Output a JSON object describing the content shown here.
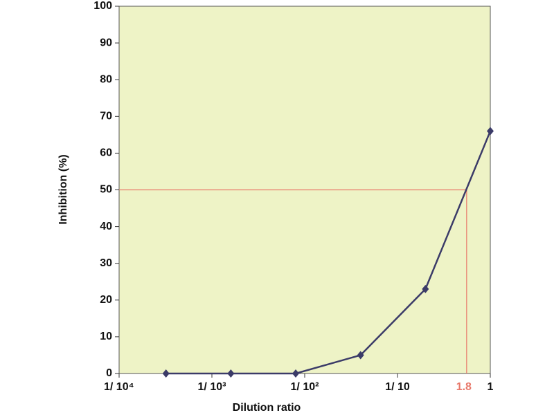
{
  "chart_data": {
    "type": "line",
    "x_label": "Dilution ratio",
    "y_label": "Inhibition (%)",
    "x": [
      0.00032,
      0.0016,
      0.008,
      0.04,
      0.2,
      1
    ],
    "series": [
      {
        "color": "#3b3b68",
        "values": [
          0,
          0,
          0,
          5,
          23,
          66
        ]
      }
    ],
    "xscale": "log",
    "xlim": [
      0.0001,
      1
    ],
    "ylim": [
      0,
      100
    ],
    "xticks": [
      {
        "value": 0.0001,
        "label": "1/ 10⁴"
      },
      {
        "value": 0.001,
        "label": "1/ 10³"
      },
      {
        "value": 0.01,
        "label": "1/ 10²"
      },
      {
        "value": 0.1,
        "label": "1/ 10"
      },
      1
    ],
    "yticks": [
      0,
      10,
      20,
      30,
      40,
      50,
      60,
      70,
      80,
      90,
      100
    ],
    "grid": false,
    "background": "#eef3c6",
    "annotation": {
      "text": "1.8",
      "x": 0.556,
      "y": 50,
      "color": "#e8786a"
    }
  }
}
